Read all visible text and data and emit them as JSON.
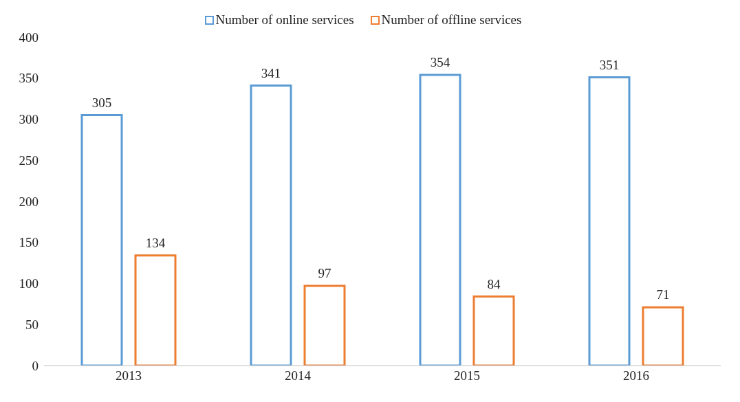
{
  "chart_data": {
    "type": "bar",
    "categories": [
      "2013",
      "2014",
      "2015",
      "2016"
    ],
    "series": [
      {
        "name": "Number of online services",
        "color": "#5b9bd5",
        "values": [
          305,
          341,
          354,
          351
        ]
      },
      {
        "name": "Number of offline services",
        "color": "#ed7d31",
        "values": [
          134,
          97,
          84,
          71
        ]
      }
    ],
    "ylim": [
      0,
      400
    ],
    "yticks": [
      0,
      50,
      100,
      150,
      200,
      250,
      300,
      350,
      400
    ],
    "grid": false,
    "legend": "top",
    "data_labels": true
  }
}
